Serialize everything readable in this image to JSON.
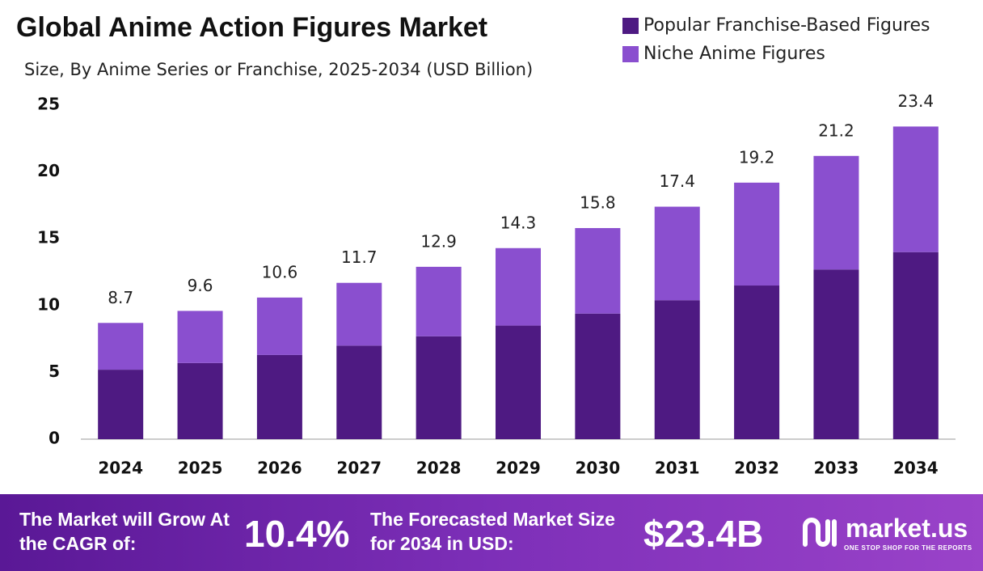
{
  "chart_data": {
    "type": "stacked_bar",
    "title": "Global Anime Action Figures Market",
    "subtitle": "Size, By Anime Series or Franchise, 2025-2034 (USD Billion)",
    "categories": [
      "2024",
      "2025",
      "2026",
      "2027",
      "2028",
      "2029",
      "2030",
      "2031",
      "2032",
      "2033",
      "2034"
    ],
    "series": [
      {
        "name": "Popular Franchise-Based Figures",
        "color": "#4e1a82",
        "values": [
          5.2,
          5.7,
          6.3,
          7.0,
          7.7,
          8.5,
          9.4,
          10.4,
          11.5,
          12.7,
          14.0
        ]
      },
      {
        "name": "Niche Anime Figures",
        "color": "#8a4fcf",
        "values": [
          3.5,
          3.9,
          4.3,
          4.7,
          5.2,
          5.8,
          6.4,
          7.0,
          7.7,
          8.5,
          9.4
        ]
      }
    ],
    "totals": [
      8.7,
      9.6,
      10.6,
      11.7,
      12.9,
      14.3,
      15.8,
      17.4,
      19.2,
      21.2,
      23.4
    ],
    "ylim": [
      0,
      25
    ],
    "yticks": [
      0,
      5,
      10,
      15,
      20,
      25
    ],
    "grid": false
  },
  "footer": {
    "cagr_label": "The Market will Grow At the CAGR of:",
    "cagr_value": "10.4%",
    "size_label": "The Forecasted Market Size for 2034 in USD:",
    "size_value": "$23.4B",
    "brand": "market.us",
    "tagline": "ONE STOP SHOP FOR THE REPORTS"
  }
}
